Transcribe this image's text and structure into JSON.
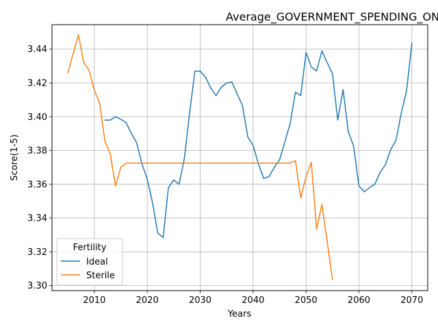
{
  "chart_data": {
    "type": "line",
    "title": "Average_GOVERNMENT_SPENDING_ON_LAW_ENFORCEMENT_of_Female_Personality",
    "xlabel": "Years",
    "ylabel": "Score(1-5)",
    "xlim": [
      2002,
      2073
    ],
    "ylim": [
      3.297,
      3.4545
    ],
    "xticks": [
      2010,
      2020,
      2030,
      2040,
      2050,
      2060,
      2070
    ],
    "yticks": [
      3.3,
      3.32,
      3.34,
      3.36,
      3.38,
      3.4,
      3.42,
      3.44
    ],
    "ytick_labels": [
      "3.30",
      "3.32",
      "3.34",
      "3.36",
      "3.38",
      "3.40",
      "3.42",
      "3.44"
    ],
    "grid": true,
    "legend": {
      "title": "Fertility",
      "placement": "lower-left"
    },
    "series": [
      {
        "name": "Ideal",
        "color": "#1f77b4",
        "x": [
          2012,
          2013,
          2014,
          2015,
          2016,
          2017,
          2018,
          2019,
          2020,
          2021,
          2022,
          2023,
          2024,
          2025,
          2026,
          2027,
          2028,
          2029,
          2030,
          2031,
          2032,
          2033,
          2034,
          2035,
          2036,
          2037,
          2038,
          2039,
          2040,
          2041,
          2042,
          2043,
          2044,
          2045,
          2046,
          2047,
          2048,
          2049,
          2050,
          2051,
          2052,
          2053,
          2054,
          2055,
          2056,
          2057,
          2058,
          2059,
          2060,
          2061,
          2062,
          2063,
          2064,
          2065,
          2066,
          2067,
          2068,
          2069,
          2070
        ],
        "y": [
          3.398,
          3.398,
          3.4,
          3.3985,
          3.3965,
          3.39,
          3.3845,
          3.372,
          3.363,
          3.349,
          3.331,
          3.3285,
          3.358,
          3.3625,
          3.36,
          3.375,
          3.402,
          3.427,
          3.427,
          3.4235,
          3.417,
          3.4125,
          3.4175,
          3.42,
          3.4205,
          3.4135,
          3.4065,
          3.388,
          3.383,
          3.372,
          3.3635,
          3.3645,
          3.37,
          3.3745,
          3.385,
          3.396,
          3.4145,
          3.4125,
          3.438,
          3.4295,
          3.427,
          3.439,
          3.432,
          3.4255,
          3.398,
          3.416,
          3.391,
          3.3825,
          3.359,
          3.3555,
          3.358,
          3.36,
          3.367,
          3.3715,
          3.3805,
          3.386,
          3.402,
          3.4155,
          3.4435
        ]
      },
      {
        "name": "Sterile",
        "color": "#ff7f0e",
        "x": [
          2005,
          2006,
          2007,
          2008,
          2009,
          2010,
          2011,
          2012,
          2013,
          2014,
          2015,
          2016,
          2017,
          2018,
          2019,
          2020,
          2021,
          2022,
          2023,
          2024,
          2025,
          2026,
          2027,
          2028,
          2029,
          2030,
          2031,
          2032,
          2033,
          2034,
          2035,
          2036,
          2037,
          2038,
          2039,
          2040,
          2041,
          2042,
          2043,
          2044,
          2045,
          2046,
          2047,
          2048,
          2049,
          2050,
          2051,
          2052,
          2053,
          2054,
          2055
        ],
        "y": [
          3.426,
          3.4375,
          3.4485,
          3.432,
          3.4275,
          3.4155,
          3.408,
          3.3855,
          3.378,
          3.359,
          3.37,
          3.3725,
          3.3725,
          3.3725,
          3.3725,
          3.3725,
          3.3725,
          3.3725,
          3.3725,
          3.3725,
          3.3725,
          3.3725,
          3.3725,
          3.3725,
          3.3725,
          3.3725,
          3.3725,
          3.3725,
          3.3725,
          3.3725,
          3.3725,
          3.3725,
          3.3725,
          3.3725,
          3.3725,
          3.3725,
          3.3725,
          3.3725,
          3.3725,
          3.3725,
          3.3725,
          3.3725,
          3.3725,
          3.374,
          3.352,
          3.3645,
          3.373,
          3.3335,
          3.348,
          3.326,
          3.3035
        ]
      }
    ]
  }
}
